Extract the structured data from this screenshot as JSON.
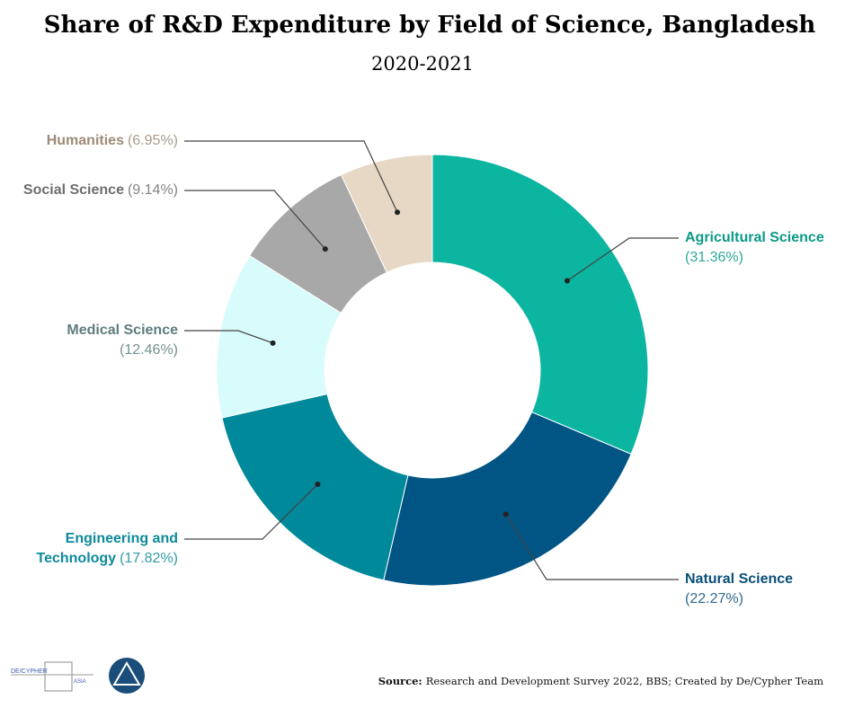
{
  "chart_data": {
    "type": "donut",
    "title": "Share of R&D Expenditure by Field of Science, Bangladesh",
    "subtitle": "2020-2021",
    "categories": [
      "Agricultural Science",
      "Natural Science",
      "Engineering and Technology",
      "Medical Science",
      "Social Science",
      "Humanities"
    ],
    "values": [
      31.36,
      22.27,
      17.82,
      12.46,
      9.14,
      6.95
    ],
    "value_labels": [
      "(31.36%)",
      "(22.27%)",
      "(17.82%)",
      "(12.46%)",
      "(9.14%)",
      "(6.95%)"
    ],
    "colors": [
      "#0bb5a0",
      "#005584",
      "#00899a",
      "#d8fbfb",
      "#a8a8a8",
      "#e6d8c4"
    ],
    "label_colors": [
      "#0a9a86",
      "#0a4f78",
      "#0d8a9a",
      "#5f7c7c",
      "#6e6e6e",
      "#9c8b77"
    ],
    "source_label": "Source:",
    "source_text": "Research and Development Survey 2022, BBS; Created by De/Cypher Team",
    "logo_text": "DE/CYPHER",
    "logo_subtext": "ASIA"
  }
}
